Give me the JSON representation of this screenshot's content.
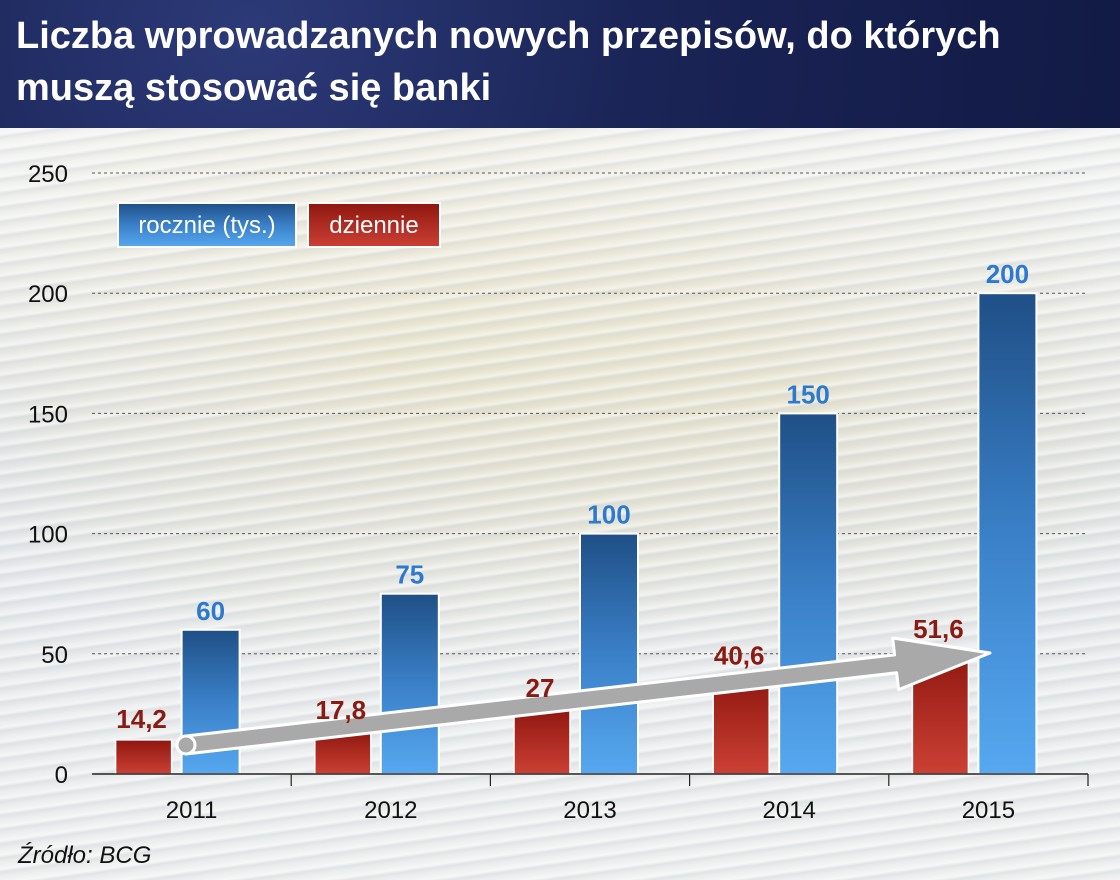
{
  "header": {
    "title": "Liczba wprowadzanych nowych przepisów, do których muszą stosować się banki"
  },
  "footer": {
    "source": "Źródło: BCG"
  },
  "colors": {
    "blue": "#3f8fdc",
    "red": "#b52a20",
    "arrow": "#a8a8a8",
    "header_bg": "#1a2456"
  },
  "chart_data": {
    "type": "bar",
    "categories": [
      "2011",
      "2012",
      "2013",
      "2014",
      "2015"
    ],
    "series": [
      {
        "name": "dziennie",
        "values": [
          14.2,
          17.8,
          27,
          40.6,
          51.6
        ],
        "labels": [
          "14,2",
          "17,8",
          "27",
          "40,6",
          "51,6"
        ],
        "color": "#b52a20"
      },
      {
        "name": "rocznie (tys.)",
        "values": [
          60,
          75,
          100,
          150,
          200
        ],
        "labels": [
          "60",
          "75",
          "100",
          "150",
          "200"
        ],
        "color": "#3f8fdc"
      }
    ],
    "yticks": [
      "0",
      "50",
      "100",
      "150",
      "200",
      "250"
    ],
    "ylim": [
      0,
      250
    ],
    "grid": true,
    "legend_position": "top-left",
    "annotation": "upward trend arrow"
  }
}
